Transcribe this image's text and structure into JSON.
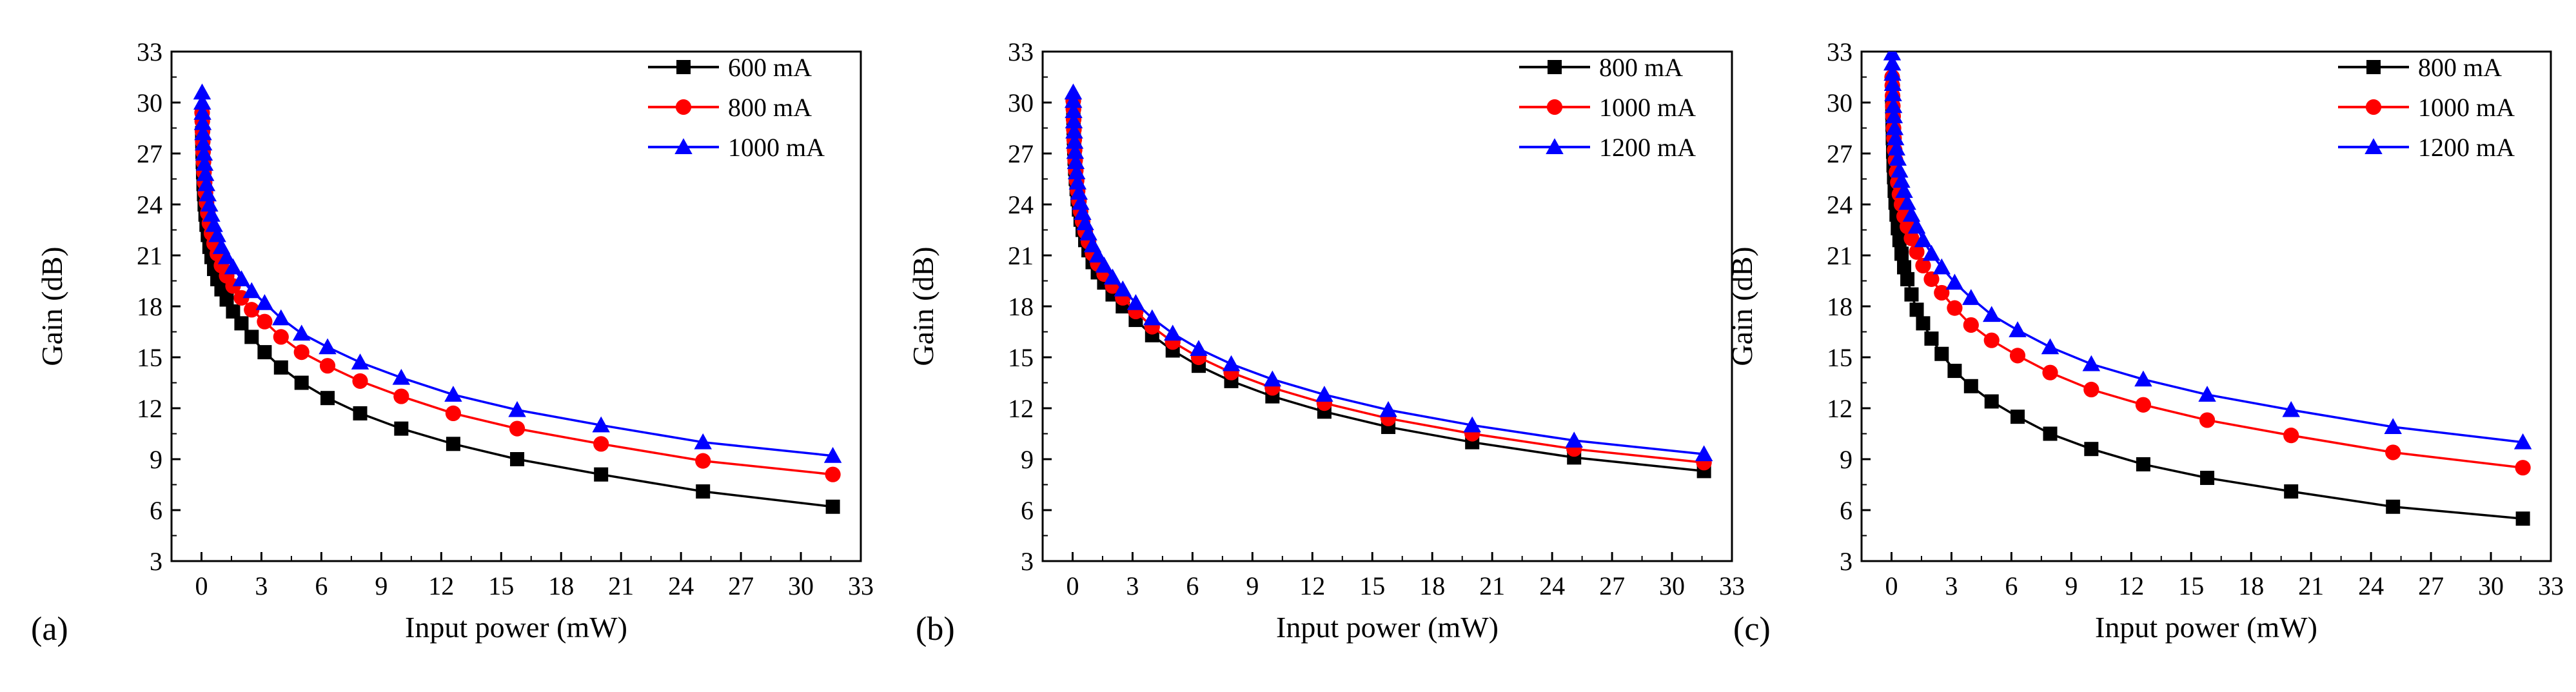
{
  "chart_data": [
    {
      "type": "line",
      "panel_label": "(a)",
      "xlabel": "Input power (mW)",
      "ylabel": "Gain (dB)",
      "xlim": [
        -1.5,
        33
      ],
      "ylim": [
        3,
        33
      ],
      "xticks": [
        0,
        3,
        6,
        9,
        12,
        15,
        18,
        21,
        24,
        27,
        30,
        33
      ],
      "yticks": [
        3,
        6,
        9,
        12,
        15,
        18,
        21,
        24,
        27,
        30,
        33
      ],
      "legend_position": "top-right",
      "series": [
        {
          "name": "600 mA",
          "color": "#000000",
          "marker": "square",
          "x": [
            0.0316,
            0.0398,
            0.0501,
            0.0631,
            0.0794,
            0.1,
            0.126,
            0.158,
            0.2,
            0.251,
            0.316,
            0.398,
            0.501,
            0.631,
            0.794,
            1.0,
            1.26,
            1.58,
            2.0,
            2.51,
            3.16,
            3.98,
            5.01,
            6.31,
            7.94,
            10.0,
            12.6,
            15.8,
            20.0,
            25.1,
            31.6
          ],
          "y": [
            28.2,
            27.7,
            27.1,
            26.5,
            25.9,
            25.2,
            24.6,
            24.0,
            23.4,
            22.8,
            22.2,
            21.5,
            20.9,
            20.2,
            19.6,
            19.0,
            18.4,
            17.7,
            17.0,
            16.2,
            15.3,
            14.4,
            13.5,
            12.6,
            11.7,
            10.8,
            9.9,
            9.0,
            8.1,
            7.1,
            6.2
          ]
        },
        {
          "name": "800 mA",
          "color": "#ff0000",
          "marker": "circle",
          "x": [
            0.0316,
            0.0398,
            0.0501,
            0.0631,
            0.0794,
            0.1,
            0.126,
            0.158,
            0.2,
            0.251,
            0.316,
            0.398,
            0.501,
            0.631,
            0.794,
            1.0,
            1.26,
            1.58,
            2.0,
            2.51,
            3.16,
            3.98,
            5.01,
            6.31,
            7.94,
            10.0,
            12.6,
            15.8,
            20.0,
            25.1,
            31.6
          ],
          "y": [
            29.4,
            28.9,
            28.3,
            27.7,
            27.1,
            26.5,
            25.9,
            25.3,
            24.7,
            24.1,
            23.5,
            22.9,
            22.3,
            21.7,
            21.1,
            20.4,
            19.8,
            19.2,
            18.5,
            17.8,
            17.1,
            16.2,
            15.3,
            14.5,
            13.6,
            12.7,
            11.7,
            10.8,
            9.9,
            8.9,
            8.1
          ]
        },
        {
          "name": "1000 mA",
          "color": "#0000ff",
          "marker": "triangle",
          "x": [
            0.0316,
            0.0398,
            0.0501,
            0.0631,
            0.0794,
            0.1,
            0.126,
            0.158,
            0.2,
            0.251,
            0.316,
            0.398,
            0.501,
            0.631,
            0.794,
            1.0,
            1.26,
            1.58,
            2.0,
            2.51,
            3.16,
            3.98,
            5.01,
            6.31,
            7.94,
            10.0,
            12.6,
            15.8,
            20.0,
            25.1,
            31.6
          ],
          "y": [
            30.6,
            30.0,
            29.4,
            28.8,
            28.2,
            27.6,
            27.0,
            26.4,
            25.8,
            25.2,
            24.6,
            24.0,
            23.4,
            22.8,
            22.2,
            21.5,
            20.9,
            20.3,
            19.6,
            18.9,
            18.2,
            17.3,
            16.4,
            15.6,
            14.7,
            13.8,
            12.8,
            11.9,
            11.0,
            10.0,
            9.2
          ]
        }
      ]
    },
    {
      "type": "line",
      "panel_label": "(b)",
      "xlabel": "Input power (mW)",
      "ylabel": "Gain (dB)",
      "xlim": [
        -1.5,
        33
      ],
      "ylim": [
        3,
        33
      ],
      "xticks": [
        0,
        3,
        6,
        9,
        12,
        15,
        18,
        21,
        24,
        27,
        30,
        33
      ],
      "yticks": [
        3,
        6,
        9,
        12,
        15,
        18,
        21,
        24,
        27,
        30,
        33
      ],
      "legend_position": "top-right",
      "series": [
        {
          "name": "800 mA",
          "color": "#000000",
          "marker": "square",
          "x": [
            0.0316,
            0.0398,
            0.0501,
            0.0631,
            0.0794,
            0.1,
            0.126,
            0.158,
            0.2,
            0.251,
            0.316,
            0.398,
            0.501,
            0.631,
            0.794,
            1.0,
            1.26,
            1.58,
            2.0,
            2.51,
            3.16,
            3.98,
            5.01,
            6.31,
            7.94,
            10.0,
            12.6,
            15.8,
            20.0,
            25.1,
            31.6
          ],
          "y": [
            29.6,
            29.1,
            28.5,
            27.9,
            27.3,
            26.7,
            26.1,
            25.5,
            24.9,
            24.3,
            23.7,
            23.1,
            22.5,
            21.9,
            21.3,
            20.6,
            20.0,
            19.4,
            18.7,
            18.0,
            17.2,
            16.3,
            15.4,
            14.5,
            13.6,
            12.7,
            11.8,
            10.9,
            10.0,
            9.1,
            8.3
          ]
        },
        {
          "name": "1000 mA",
          "color": "#ff0000",
          "marker": "circle",
          "x": [
            0.0316,
            0.0398,
            0.0501,
            0.0631,
            0.0794,
            0.1,
            0.126,
            0.158,
            0.2,
            0.251,
            0.316,
            0.398,
            0.501,
            0.631,
            0.794,
            1.0,
            1.26,
            1.58,
            2.0,
            2.51,
            3.16,
            3.98,
            5.01,
            6.31,
            7.94,
            10.0,
            12.6,
            15.8,
            20.0,
            25.1,
            31.6
          ],
          "y": [
            30.1,
            29.6,
            29.0,
            28.4,
            27.8,
            27.2,
            26.6,
            26.0,
            25.4,
            24.8,
            24.2,
            23.6,
            23.0,
            22.4,
            21.8,
            21.1,
            20.5,
            19.9,
            19.2,
            18.5,
            17.7,
            16.8,
            15.9,
            15.0,
            14.1,
            13.2,
            12.3,
            11.4,
            10.5,
            9.6,
            8.8
          ]
        },
        {
          "name": "1200 mA",
          "color": "#0000ff",
          "marker": "triangle",
          "x": [
            0.0316,
            0.0398,
            0.0501,
            0.0631,
            0.0794,
            0.1,
            0.126,
            0.158,
            0.2,
            0.251,
            0.316,
            0.398,
            0.501,
            0.631,
            0.794,
            1.0,
            1.26,
            1.58,
            2.0,
            2.51,
            3.16,
            3.98,
            5.01,
            6.31,
            7.94,
            10.0,
            12.6,
            15.8,
            20.0,
            25.1,
            31.6
          ],
          "y": [
            30.6,
            30.1,
            29.5,
            28.9,
            28.3,
            27.7,
            27.1,
            26.5,
            25.9,
            25.3,
            24.7,
            24.1,
            23.5,
            22.9,
            22.3,
            21.6,
            21.0,
            20.4,
            19.7,
            19.0,
            18.2,
            17.3,
            16.4,
            15.5,
            14.6,
            13.7,
            12.8,
            11.9,
            11.0,
            10.1,
            9.3
          ]
        }
      ]
    },
    {
      "type": "line",
      "panel_label": "(c)",
      "xlabel": "Input power (mW)",
      "ylabel": "Gain (dB)",
      "xlim": [
        -1.5,
        33
      ],
      "ylim": [
        3,
        33
      ],
      "xticks": [
        0,
        3,
        6,
        9,
        12,
        15,
        18,
        21,
        24,
        27,
        30,
        33
      ],
      "yticks": [
        3,
        6,
        9,
        12,
        15,
        18,
        21,
        24,
        27,
        30,
        33
      ],
      "legend_position": "top-right",
      "series": [
        {
          "name": "800 mA",
          "color": "#000000",
          "marker": "square",
          "x": [
            0.0316,
            0.0398,
            0.0501,
            0.0631,
            0.0794,
            0.1,
            0.126,
            0.158,
            0.2,
            0.251,
            0.316,
            0.398,
            0.501,
            0.631,
            0.794,
            1.0,
            1.26,
            1.58,
            2.0,
            2.51,
            3.16,
            3.98,
            5.01,
            6.31,
            7.94,
            10.0,
            12.6,
            15.8,
            20.0,
            25.1,
            31.6
          ],
          "y": [
            30.1,
            29.4,
            28.7,
            27.9,
            27.1,
            26.3,
            25.6,
            24.8,
            24.1,
            23.4,
            22.6,
            21.9,
            21.1,
            20.3,
            19.6,
            18.7,
            17.8,
            17.0,
            16.1,
            15.2,
            14.2,
            13.3,
            12.4,
            11.5,
            10.5,
            9.6,
            8.7,
            7.9,
            7.1,
            6.2,
            5.5
          ]
        },
        {
          "name": "1000 mA",
          "color": "#ff0000",
          "marker": "circle",
          "x": [
            0.0316,
            0.0398,
            0.0501,
            0.0631,
            0.0794,
            0.1,
            0.126,
            0.158,
            0.2,
            0.251,
            0.316,
            0.398,
            0.501,
            0.631,
            0.794,
            1.0,
            1.26,
            1.58,
            2.0,
            2.51,
            3.16,
            3.98,
            5.01,
            6.31,
            7.94,
            10.0,
            12.6,
            15.8,
            20.0,
            25.1,
            31.6
          ],
          "y": [
            31.5,
            31.0,
            30.4,
            29.8,
            29.2,
            28.5,
            27.9,
            27.2,
            26.6,
            25.9,
            25.3,
            24.6,
            24.0,
            23.3,
            22.7,
            22.0,
            21.2,
            20.4,
            19.6,
            18.8,
            17.9,
            16.9,
            16.0,
            15.1,
            14.1,
            13.1,
            12.2,
            11.3,
            10.4,
            9.4,
            8.5
          ]
        },
        {
          "name": "1200 mA",
          "color": "#0000ff",
          "marker": "triangle",
          "x": [
            0.0316,
            0.0398,
            0.0501,
            0.0631,
            0.0794,
            0.1,
            0.126,
            0.158,
            0.2,
            0.251,
            0.316,
            0.398,
            0.501,
            0.631,
            0.794,
            1.0,
            1.26,
            1.58,
            2.0,
            2.51,
            3.16,
            3.98,
            5.01,
            6.31,
            7.94,
            10.0,
            12.6,
            15.8,
            20.0,
            25.1,
            31.6
          ],
          "y": [
            32.9,
            32.3,
            31.7,
            31.1,
            30.5,
            29.8,
            29.2,
            28.5,
            27.9,
            27.3,
            26.7,
            26.0,
            25.4,
            24.8,
            24.1,
            23.4,
            22.7,
            21.9,
            21.1,
            20.3,
            19.4,
            18.5,
            17.5,
            16.6,
            15.6,
            14.6,
            13.7,
            12.8,
            11.9,
            10.9,
            10.0
          ]
        }
      ]
    }
  ]
}
